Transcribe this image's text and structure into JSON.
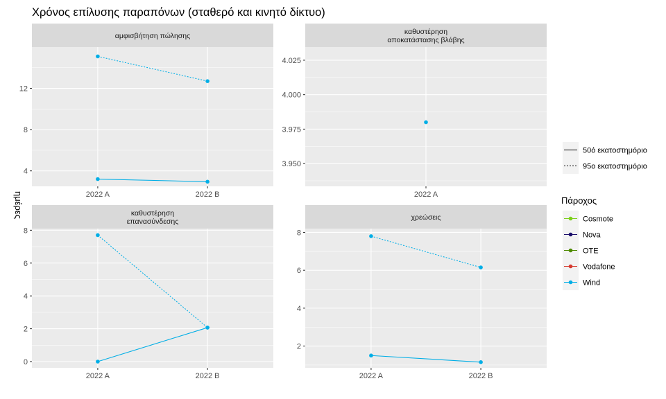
{
  "chart_data": {
    "type": "line",
    "title": "Χρόνος επίλυσης παραπόνων (σταθερό και κινητό δίκτυο)",
    "ylabel": "ημέρες",
    "xlabel": "",
    "legend_placement": "right",
    "grid": true,
    "colors": {
      "Cosmote": "#7cd11a",
      "Nova": "#1b0e6b",
      "OTE": "#4e8a00",
      "Vodafone": "#d63a2f",
      "Wind": "#00aee6"
    },
    "linetype_legend": {
      "title": "",
      "entries": [
        {
          "label": "50ό εκατοστημόριο",
          "dash": "solid"
        },
        {
          "label": "95ο εκατοστημόριο",
          "dash": "dotted"
        }
      ]
    },
    "color_legend": {
      "title": "Πάροχος",
      "entries": [
        "Cosmote",
        "Nova",
        "OTE",
        "Vodafone",
        "Wind"
      ]
    },
    "panels": [
      {
        "strip": [
          "αμφισβήτηση πώλησης"
        ],
        "categories": [
          "2022 A",
          "2022 B"
        ],
        "ylim": [
          2.5,
          16.0
        ],
        "yticks": [
          4,
          8,
          12
        ],
        "ytick_labels": [
          "4",
          "8",
          "12"
        ],
        "series": [
          {
            "name": "Wind",
            "percentile": "95ο εκατοστημόριο",
            "dash": "dotted",
            "values": [
              15.1,
              12.7
            ]
          },
          {
            "name": "Wind",
            "percentile": "50ό εκατοστημόριο",
            "dash": "solid",
            "values": [
              3.2,
              2.95
            ]
          }
        ]
      },
      {
        "strip": [
          "καθυστέρηση",
          "αποκατάστασης βλάβης"
        ],
        "categories": [
          "2022 A"
        ],
        "ylim": [
          3.9335,
          4.0345
        ],
        "yticks": [
          3.95,
          3.975,
          4.0,
          4.025
        ],
        "ytick_labels": [
          "3.950",
          "3.975",
          "4.000",
          "4.025"
        ],
        "series": [
          {
            "name": "Wind",
            "percentile": "50ό εκατοστημόριο",
            "dash": "solid",
            "values": [
              3.98
            ]
          }
        ]
      },
      {
        "strip": [
          "καθυστέρηση",
          "επανασύνδεσης"
        ],
        "categories": [
          "2022 A",
          "2022 B"
        ],
        "ylim": [
          -0.38,
          8.1
        ],
        "yticks": [
          0,
          2,
          4,
          6,
          8
        ],
        "ytick_labels": [
          "0",
          "2",
          "4",
          "6",
          "8"
        ],
        "series": [
          {
            "name": "Wind",
            "percentile": "95ο εκατοστημόριο",
            "dash": "dotted",
            "values": [
              7.7,
              2.07
            ]
          },
          {
            "name": "Wind",
            "percentile": "50ό εκατοστημόριο",
            "dash": "solid",
            "values": [
              0.0,
              2.07
            ]
          }
        ]
      },
      {
        "strip": [
          "χρεώσεις"
        ],
        "categories": [
          "2022 A",
          "2022 B"
        ],
        "ylim": [
          0.85,
          8.2
        ],
        "yticks": [
          2,
          4,
          6,
          8
        ],
        "ytick_labels": [
          "2",
          "4",
          "6",
          "8"
        ],
        "series": [
          {
            "name": "Wind",
            "percentile": "95ο εκατοστημόριο",
            "dash": "dotted",
            "values": [
              7.8,
              6.15
            ]
          },
          {
            "name": "Wind",
            "percentile": "50ό εκατοστημόριο",
            "dash": "solid",
            "values": [
              1.5,
              1.15
            ]
          }
        ]
      }
    ]
  }
}
